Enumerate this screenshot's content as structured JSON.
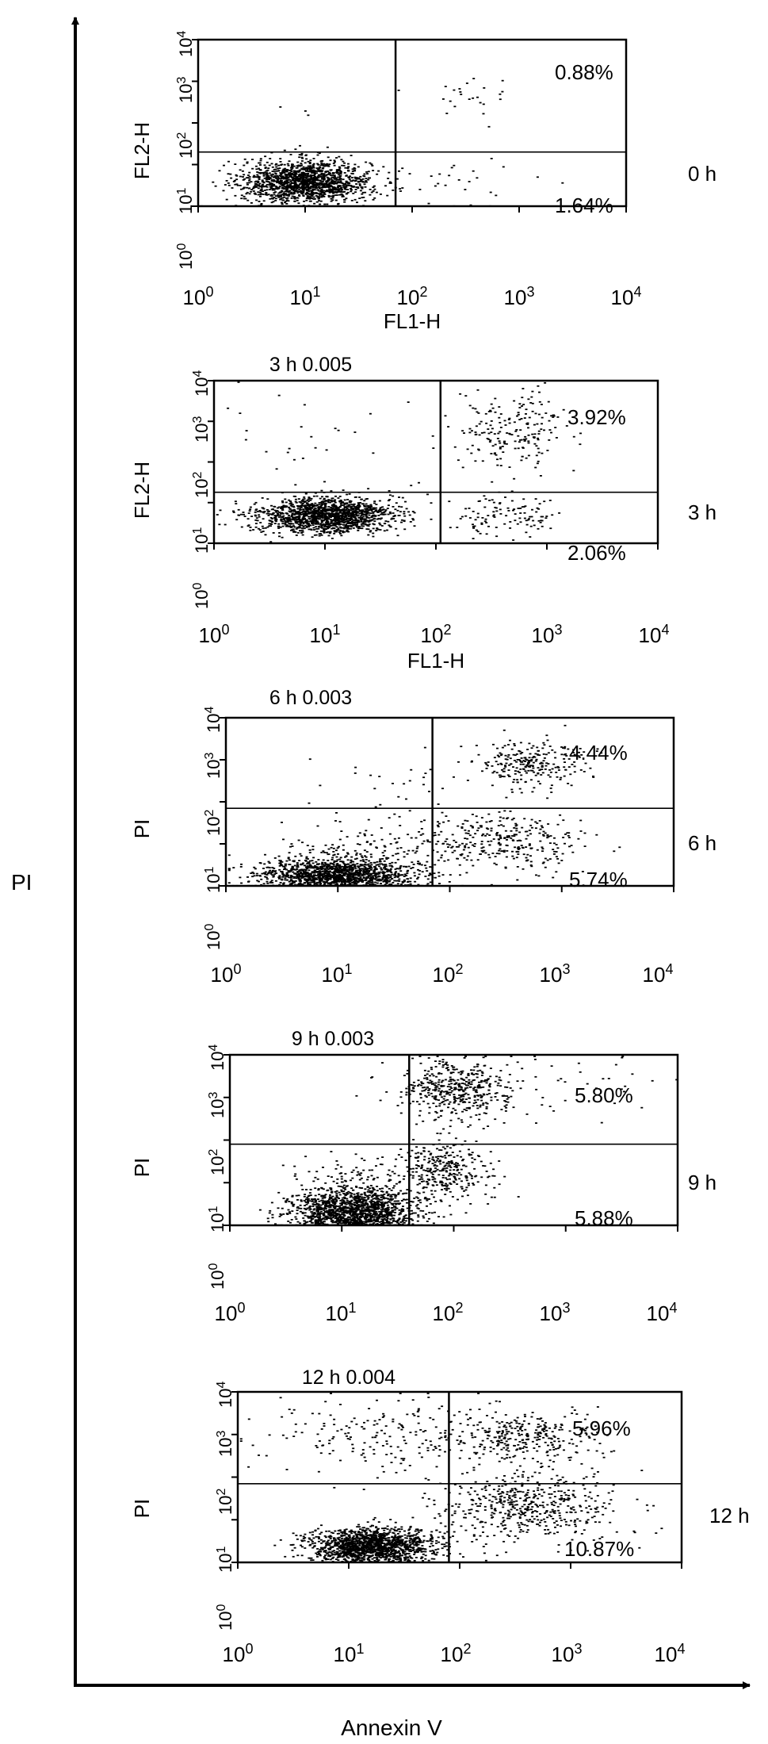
{
  "figure": {
    "x_axis_label": "Annexin V",
    "y_axis_label": "PI",
    "colors": {
      "ink": "#000000",
      "background": "#ffffff"
    }
  },
  "chart_data": [
    {
      "type": "scatter",
      "scale": "log",
      "title": "",
      "xlabel": "FL1-H",
      "ylabel": "FL2-H",
      "time_label": "0 h",
      "xlim": [
        1,
        10000
      ],
      "ylim": [
        1,
        10000
      ],
      "xticks": [
        "10",
        "10",
        "10",
        "10",
        "10"
      ],
      "xtick_exponents": [
        "0",
        "1",
        "2",
        "3",
        "4"
      ],
      "yticks": [
        "10",
        "10",
        "10",
        "10",
        "10"
      ],
      "ytick_exponents": [
        "0",
        "1",
        "2",
        "3",
        "4"
      ],
      "gate": {
        "x": 70,
        "y": 20
      },
      "quadrant_labels": {
        "upper_right": "0.88%",
        "lower_right": "1.64%"
      },
      "populations": [
        {
          "region": "lower-left (live)",
          "cx": 10,
          "cy": 4,
          "sx": 0.3,
          "sy": 0.25,
          "n": 1500
        },
        {
          "region": "lower-right (early apoptotic)",
          "cx": 300,
          "cy": 3,
          "sx": 0.3,
          "sy": 0.25,
          "n": 28
        },
        {
          "region": "upper-right (late apoptotic)",
          "cx": 250,
          "cy": 400,
          "sx": 0.25,
          "sy": 0.35,
          "n": 24
        },
        {
          "region": "upper-left",
          "cx": 8,
          "cy": 60,
          "sx": 0.5,
          "sy": 0.6,
          "n": 8
        }
      ]
    },
    {
      "type": "scatter",
      "scale": "log",
      "title": "3 h 0.005",
      "xlabel": "FL1-H",
      "ylabel": "FL2-H",
      "time_label": "3 h",
      "xlim": [
        1,
        10000
      ],
      "ylim": [
        1,
        10000
      ],
      "xticks": [
        "10",
        "10",
        "10",
        "10",
        "10"
      ],
      "xtick_exponents": [
        "0",
        "1",
        "2",
        "3",
        "4"
      ],
      "yticks": [
        "10",
        "10",
        "10",
        "10",
        "10"
      ],
      "ytick_exponents": [
        "0",
        "1",
        "2",
        "3",
        "4"
      ],
      "gate": {
        "x": 110,
        "y": 18
      },
      "quadrant_labels": {
        "upper_right": "3.92%",
        "lower_right": "2.06%"
      },
      "populations": [
        {
          "region": "lower-left (live)",
          "cx": 10,
          "cy": 5,
          "sx": 0.3,
          "sy": 0.22,
          "n": 1500
        },
        {
          "region": "lower-right (early apoptotic)",
          "cx": 400,
          "cy": 5,
          "sx": 0.25,
          "sy": 0.25,
          "n": 110
        },
        {
          "region": "upper-right (late apoptotic)",
          "cx": 500,
          "cy": 600,
          "sx": 0.25,
          "sy": 0.45,
          "n": 200
        },
        {
          "region": "upper-left",
          "cx": 10,
          "cy": 400,
          "sx": 0.6,
          "sy": 0.7,
          "n": 30
        }
      ]
    },
    {
      "type": "scatter",
      "scale": "log",
      "title": "6 h 0.003",
      "xlabel": "",
      "ylabel": "PI",
      "time_label": "6 h",
      "xlim": [
        1,
        10000
      ],
      "ylim": [
        1,
        10000
      ],
      "xticks": [
        "10",
        "10",
        "10",
        "10",
        "10"
      ],
      "xtick_exponents": [
        "0",
        "1",
        "2",
        "3",
        "4"
      ],
      "yticks": [
        "10",
        "10",
        "10",
        "10",
        "10"
      ],
      "ytick_exponents": [
        "0",
        "1",
        "2",
        "3",
        "4"
      ],
      "gate": {
        "x": 70,
        "y": 70
      },
      "quadrant_labels": {
        "upper_right": "4.44%",
        "lower_right": "5.74%"
      },
      "populations": [
        {
          "region": "lower-left (live)",
          "cx": 10,
          "cy": 1.8,
          "sx": 0.35,
          "sy": 0.2,
          "n": 1500
        },
        {
          "region": "lower-left tail",
          "cx": 20,
          "cy": 8,
          "sx": 0.4,
          "sy": 0.35,
          "n": 150
        },
        {
          "region": "lower-right (early apoptotic)",
          "cx": 300,
          "cy": 12,
          "sx": 0.35,
          "sy": 0.35,
          "n": 300
        },
        {
          "region": "upper-right (late apoptotic)",
          "cx": 500,
          "cy": 800,
          "sx": 0.25,
          "sy": 0.3,
          "n": 250
        },
        {
          "region": "upper-left",
          "cx": 25,
          "cy": 150,
          "sx": 0.4,
          "sy": 0.5,
          "n": 30
        }
      ]
    },
    {
      "type": "scatter",
      "scale": "log",
      "title": "9 h 0.003",
      "xlabel": "",
      "ylabel": "PI",
      "time_label": "9 h",
      "xlim": [
        1,
        10000
      ],
      "ylim": [
        1,
        10000
      ],
      "xticks": [
        "10",
        "10",
        "10",
        "10",
        "10"
      ],
      "xtick_exponents": [
        "0",
        "1",
        "2",
        "3",
        "4"
      ],
      "yticks": [
        "10",
        "10",
        "10",
        "10",
        "10"
      ],
      "ytick_exponents": [
        "0",
        "1",
        "2",
        "3",
        "4"
      ],
      "gate": {
        "x": 40,
        "y": 80
      },
      "quadrant_labels": {
        "upper_right": "5.80%",
        "lower_right": "5.88%"
      },
      "populations": [
        {
          "region": "lower-left (live)",
          "cx": 12,
          "cy": 2,
          "sx": 0.28,
          "sy": 0.25,
          "n": 1500
        },
        {
          "region": "lower-left tail",
          "cx": 15,
          "cy": 8,
          "sx": 0.3,
          "sy": 0.35,
          "n": 180
        },
        {
          "region": "lower-right (early apoptotic)",
          "cx": 80,
          "cy": 20,
          "sx": 0.2,
          "sy": 0.35,
          "n": 300
        },
        {
          "region": "upper-right (late apoptotic)",
          "cx": 100,
          "cy": 1500,
          "sx": 0.25,
          "sy": 0.35,
          "n": 450
        },
        {
          "region": "upper-right spread",
          "cx": 800,
          "cy": 2000,
          "sx": 0.5,
          "sy": 0.4,
          "n": 40
        }
      ]
    },
    {
      "type": "scatter",
      "scale": "log",
      "title": "12 h 0.004",
      "xlabel": "",
      "ylabel": "PI",
      "time_label": "12 h",
      "xlim": [
        1,
        10000
      ],
      "ylim": [
        1,
        10000
      ],
      "xticks": [
        "10",
        "10",
        "10",
        "10",
        "10"
      ],
      "xtick_exponents": [
        "0",
        "1",
        "2",
        "3",
        "4"
      ],
      "yticks": [
        "10",
        "10",
        "10",
        "10",
        "10"
      ],
      "ytick_exponents": [
        "0",
        "1",
        "2",
        "3",
        "4"
      ],
      "gate": {
        "x": 80,
        "y": 70
      },
      "quadrant_labels": {
        "upper_right": "5.96%",
        "lower_right": "10.87%"
      },
      "populations": [
        {
          "region": "lower-left (live)",
          "cx": 15,
          "cy": 2.5,
          "sx": 0.28,
          "sy": 0.22,
          "n": 1500
        },
        {
          "region": "lower-right (early apoptotic)",
          "cx": 400,
          "cy": 20,
          "sx": 0.4,
          "sy": 0.4,
          "n": 500
        },
        {
          "region": "upper-right (late apoptotic)",
          "cx": 400,
          "cy": 900,
          "sx": 0.35,
          "sy": 0.3,
          "n": 300
        },
        {
          "region": "upper-left",
          "cx": 20,
          "cy": 800,
          "sx": 0.6,
          "sy": 0.5,
          "n": 200
        }
      ]
    }
  ]
}
